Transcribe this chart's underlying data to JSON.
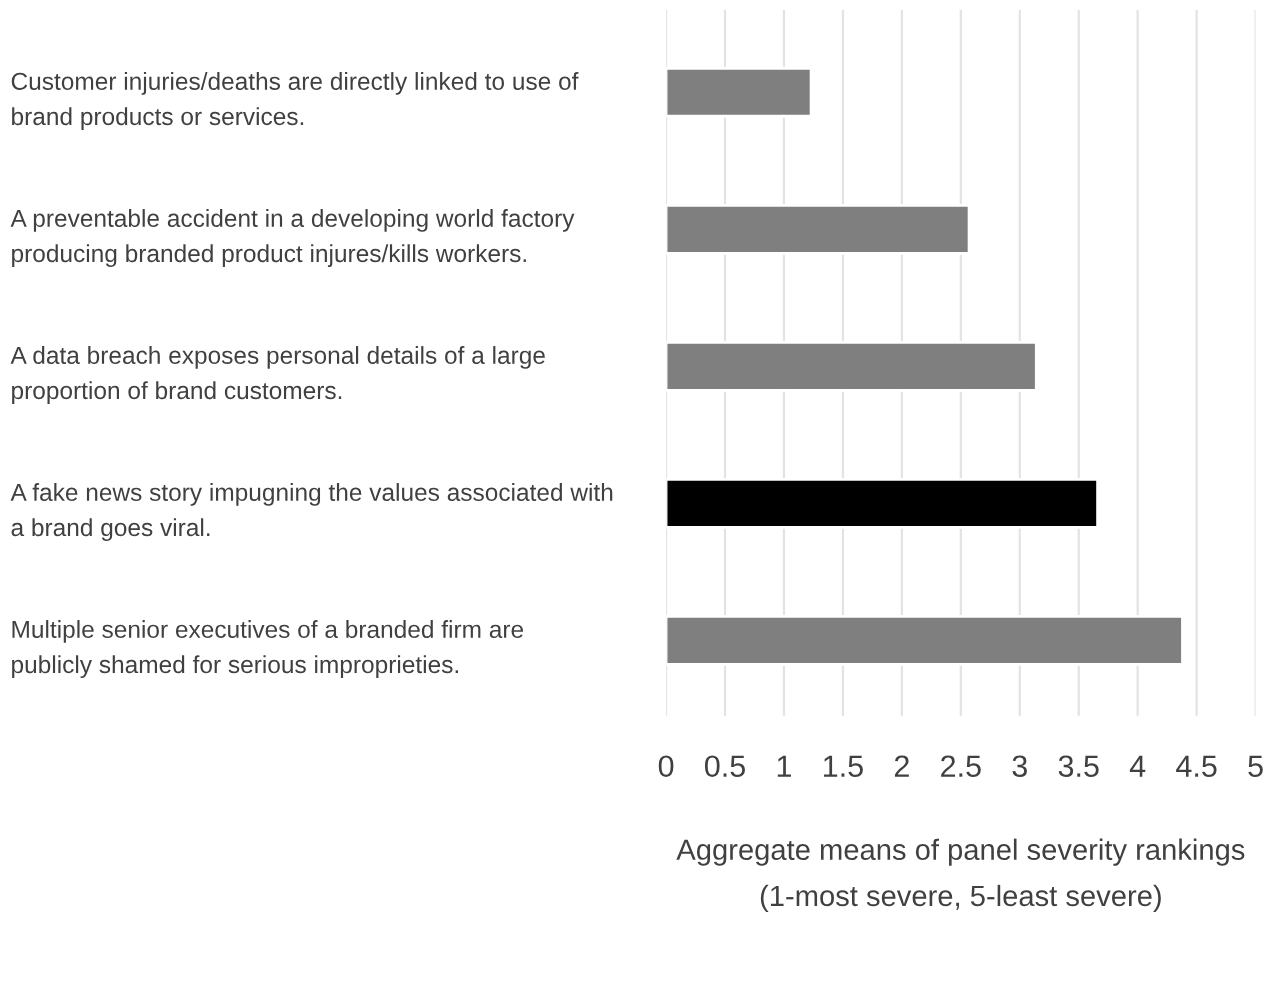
{
  "chart_data": {
    "type": "bar",
    "orientation": "horizontal",
    "categories": [
      "Customer injuries/deaths are directly linked to use of\nbrand products or services.",
      "A preventable accident in a developing world factory\nproducing branded product injures/kills workers.",
      "A data breach exposes personal details of a large\nproportion of brand customers.",
      "A fake news story impugning the values associated with\na brand goes viral.",
      "Multiple senior executives of a branded firm are\npublicly shamed for serious improprieties."
    ],
    "values": [
      1.23,
      2.57,
      3.14,
      3.66,
      4.38
    ],
    "colors": [
      "#7f7f7f",
      "#7f7f7f",
      "#7f7f7f",
      "#000000",
      "#7f7f7f"
    ],
    "xlabel": "Aggregate means of panel severity rankings\n(1-most severe, 5-least severe)",
    "xlim": [
      0,
      5
    ],
    "xticks": [
      0,
      0.5,
      1,
      1.5,
      2,
      2.5,
      3,
      3.5,
      4,
      4.5,
      5
    ],
    "grid": "x"
  }
}
